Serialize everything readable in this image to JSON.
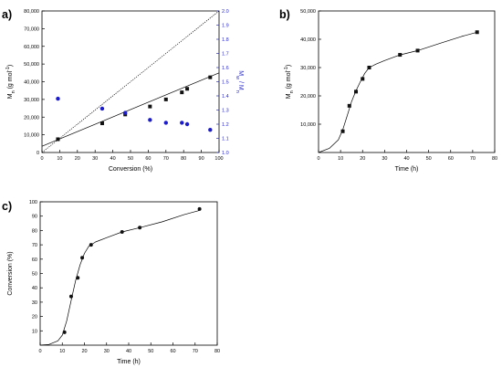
{
  "chart_data": [
    {
      "panel": "a)",
      "type": "scatter",
      "xlabel": "Conversion (%)",
      "ylabel": "Mn (g mol⁻¹)",
      "ylabel_right": "Mw / Mn",
      "xlim": [
        0,
        100
      ],
      "ylim": [
        0,
        80000
      ],
      "ylim_right": [
        1.0,
        2.0
      ],
      "x_ticks": [
        "0",
        "10",
        "20",
        "30",
        "40",
        "50",
        "60",
        "70",
        "80",
        "90",
        "100"
      ],
      "y_ticks": [
        "0",
        "10,000",
        "20,000",
        "30,000",
        "40,000",
        "50,000",
        "60,000",
        "70,000",
        "80,000"
      ],
      "y_ticks_right": [
        "1.0",
        "1.1",
        "1.2",
        "1.3",
        "1.4",
        "1.5",
        "1.6",
        "1.7",
        "1.8",
        "1.9",
        "2.0"
      ],
      "right_axis_color": "#2a2acc",
      "series": [
        {
          "marker": "square",
          "color": "#111111",
          "axis": "left",
          "x": [
            9,
            34,
            47,
            61,
            70,
            79,
            82,
            95
          ],
          "y": [
            7500,
            16500,
            21500,
            26000,
            30000,
            34000,
            36000,
            42500
          ]
        },
        {
          "marker": "circle",
          "color": "#1c1cc8",
          "axis": "right",
          "x": [
            9,
            34,
            47,
            61,
            70,
            79,
            82,
            95
          ],
          "y": [
            1.38,
            1.31,
            1.28,
            1.23,
            1.21,
            1.21,
            1.2,
            1.16
          ]
        }
      ],
      "fit_line": {
        "x": [
          0,
          100
        ],
        "y": [
          3500,
          45000
        ]
      },
      "theory_line": {
        "x": [
          0,
          100
        ],
        "y": [
          0,
          80000
        ]
      }
    },
    {
      "panel": "b)",
      "type": "line",
      "xlabel": "Time (h)",
      "ylabel": "Mn (g mol⁻¹)",
      "xlim": [
        0,
        80
      ],
      "ylim": [
        0,
        50000
      ],
      "x_ticks": [
        "0",
        "10",
        "20",
        "30",
        "40",
        "50",
        "60",
        "70",
        "80"
      ],
      "y_ticks": [
        "10,000",
        "20,000",
        "30,000",
        "40,000",
        "50,000"
      ],
      "points": {
        "x": [
          11,
          14,
          17,
          20,
          23,
          37,
          45,
          72
        ],
        "y": [
          7500,
          16500,
          21500,
          26000,
          30000,
          34500,
          36000,
          42500
        ]
      },
      "curve": {
        "x": [
          0,
          5,
          9,
          11,
          13,
          15,
          17,
          19,
          21,
          23,
          26,
          30,
          37,
          45,
          55,
          65,
          72
        ],
        "y": [
          0,
          1500,
          4500,
          8000,
          13000,
          18000,
          21800,
          25000,
          28000,
          30000,
          31200,
          32500,
          34500,
          36000,
          38500,
          41000,
          42500
        ]
      }
    },
    {
      "panel": "c)",
      "type": "line",
      "xlabel": "Time (h)",
      "ylabel": "Conversion (%)",
      "xlim": [
        0,
        80
      ],
      "ylim": [
        0,
        100
      ],
      "x_ticks": [
        "0",
        "10",
        "20",
        "30",
        "40",
        "50",
        "60",
        "70",
        "80"
      ],
      "y_ticks": [
        "10",
        "20",
        "30",
        "40",
        "50",
        "60",
        "70",
        "80",
        "90",
        "100"
      ],
      "points": {
        "x": [
          11,
          14,
          17,
          19,
          23,
          37,
          45,
          72
        ],
        "y": [
          9,
          34,
          47,
          61,
          70,
          79,
          82,
          95
        ]
      },
      "curve": {
        "x": [
          0,
          4,
          8,
          10,
          12,
          14,
          16,
          18,
          20,
          22,
          25,
          30,
          37,
          45,
          55,
          65,
          72
        ],
        "y": [
          0,
          0.5,
          3,
          7,
          17,
          31,
          45,
          56,
          64,
          69,
          72,
          75,
          79,
          82,
          86,
          91,
          94
        ]
      }
    }
  ]
}
